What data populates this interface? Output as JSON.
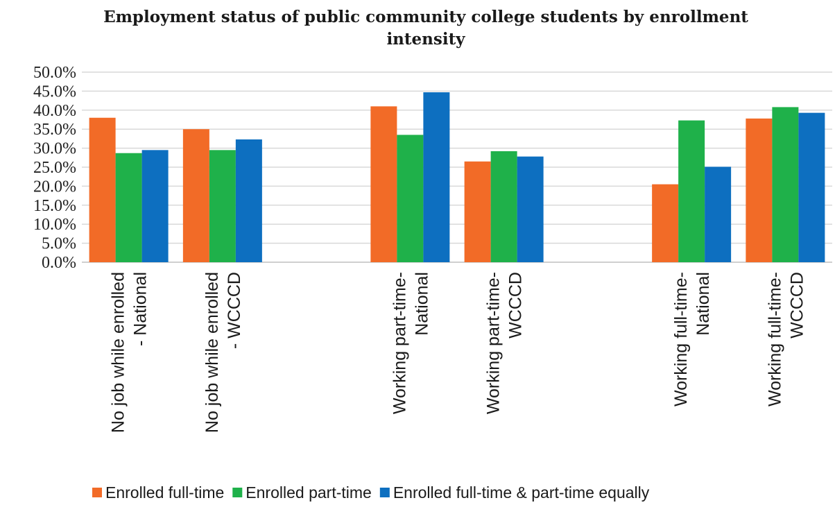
{
  "chart_data": {
    "type": "bar",
    "title": "Employment status of public community college students by enrollment intensity",
    "title_lines": [
      "Employment status of public community college students by enrollment",
      "intensity"
    ],
    "xlabel": "",
    "ylabel": "",
    "ylim": [
      0,
      50
    ],
    "yticks": [
      "0.0%",
      "5.0%",
      "10.0%",
      "15.0%",
      "20.0%",
      "25.0%",
      "30.0%",
      "35.0%",
      "40.0%",
      "45.0%",
      "50.0%"
    ],
    "grid": true,
    "legend_position": "bottom",
    "categories": [
      {
        "lines": [
          "No job while enrolled",
          "- National"
        ]
      },
      {
        "lines": [
          "No job while enrolled",
          "- WCCCD"
        ]
      },
      {
        "lines": [
          ""
        ]
      },
      {
        "lines": [
          "Working part-time-",
          "National"
        ]
      },
      {
        "lines": [
          "Working part-time-",
          "WCCCD"
        ]
      },
      {
        "lines": [
          ""
        ]
      },
      {
        "lines": [
          "Working full-time-",
          "National"
        ]
      },
      {
        "lines": [
          "Working full-time-",
          "WCCCD"
        ]
      }
    ],
    "series": [
      {
        "name": "Enrolled full-time",
        "color": "#f26b27",
        "values": [
          38.0,
          35.0,
          null,
          41.0,
          26.5,
          null,
          20.5,
          37.8
        ]
      },
      {
        "name": "Enrolled part-time",
        "color": "#1fb14a",
        "values": [
          28.7,
          29.5,
          null,
          33.5,
          29.2,
          null,
          37.3,
          40.8
        ]
      },
      {
        "name": "Enrolled full-time & part-time equally",
        "color": "#0d6fc0",
        "values": [
          29.5,
          32.3,
          null,
          44.7,
          27.8,
          null,
          25.1,
          39.3
        ]
      }
    ]
  }
}
